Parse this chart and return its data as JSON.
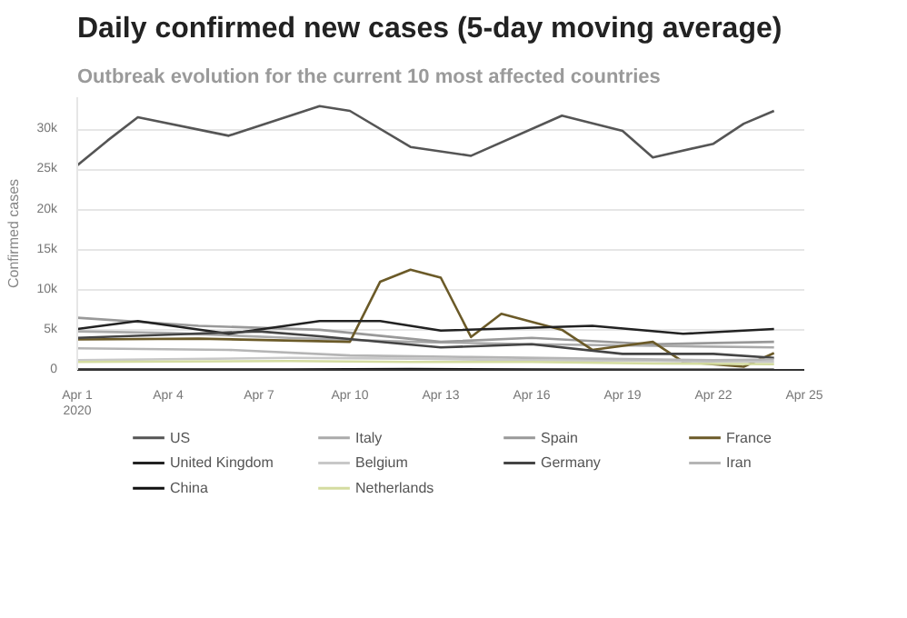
{
  "chart_data": {
    "type": "line",
    "title": "Daily confirmed new cases (5-day moving average)",
    "subtitle": "Outbreak evolution for the current 10 most affected countries",
    "ylabel": "Confirmed cases",
    "x": [
      "2020-04-01",
      "2020-04-02",
      "2020-04-03",
      "2020-04-06",
      "2020-04-09",
      "2020-04-10",
      "2020-04-12",
      "2020-04-14",
      "2020-04-17",
      "2020-04-19",
      "2020-04-20",
      "2020-04-22",
      "2020-04-23",
      "2020-04-24"
    ],
    "xlim": [
      "2020-04-01",
      "2020-04-25"
    ],
    "ylim": [
      0,
      34000
    ],
    "xticks": [
      {
        "value": "2020-04-01",
        "label": "Apr 1\n2020"
      },
      {
        "value": "2020-04-04",
        "label": "Apr 4"
      },
      {
        "value": "2020-04-07",
        "label": "Apr 7"
      },
      {
        "value": "2020-04-10",
        "label": "Apr 10"
      },
      {
        "value": "2020-04-13",
        "label": "Apr 13"
      },
      {
        "value": "2020-04-16",
        "label": "Apr 16"
      },
      {
        "value": "2020-04-19",
        "label": "Apr 19"
      },
      {
        "value": "2020-04-22",
        "label": "Apr 22"
      },
      {
        "value": "2020-04-25",
        "label": "Apr 25"
      }
    ],
    "yticks": [
      {
        "value": 0,
        "label": "0"
      },
      {
        "value": 5000,
        "label": "5k"
      },
      {
        "value": 10000,
        "label": "10k"
      },
      {
        "value": 15000,
        "label": "15k"
      },
      {
        "value": 20000,
        "label": "20k"
      },
      {
        "value": 25000,
        "label": "25k"
      },
      {
        "value": 30000,
        "label": "30k"
      }
    ],
    "grid": "y",
    "legend": "bottom",
    "marker": "none",
    "line_style": "solid",
    "series": [
      {
        "name": "US",
        "color": "#555555",
        "values": [
          25500,
          28600,
          31500,
          29200,
          32900,
          32300,
          27800,
          26700,
          31700,
          29800,
          26500,
          28200,
          30700,
          32300
        ]
      },
      {
        "name": "Italy",
        "color": "#aaaaaa",
        "x": [
          "2020-04-01",
          "2020-04-04",
          "2020-04-08",
          "2020-04-12",
          "2020-04-16",
          "2020-04-20",
          "2020-04-24"
        ],
        "values": [
          4800,
          4600,
          4000,
          3500,
          3200,
          3000,
          2800
        ]
      },
      {
        "name": "Spain",
        "color": "#999999",
        "x": [
          "2020-04-01",
          "2020-04-05",
          "2020-04-09",
          "2020-04-13",
          "2020-04-16",
          "2020-04-20",
          "2020-04-24"
        ],
        "values": [
          6500,
          5500,
          5000,
          3500,
          4000,
          3200,
          3500
        ]
      },
      {
        "name": "France",
        "color": "#6b5a28",
        "x": [
          "2020-04-01",
          "2020-04-05",
          "2020-04-10",
          "2020-04-11",
          "2020-04-12",
          "2020-04-13",
          "2020-04-14",
          "2020-04-15",
          "2020-04-17",
          "2020-04-18",
          "2020-04-20",
          "2020-04-21",
          "2020-04-23",
          "2020-04-24"
        ],
        "values": [
          3800,
          3900,
          3500,
          11000,
          12500,
          11500,
          4100,
          7000,
          5000,
          2500,
          3500,
          1000,
          400,
          2100
        ]
      },
      {
        "name": "United Kingdom",
        "color": "#222222",
        "x": [
          "2020-04-01",
          "2020-04-03",
          "2020-04-06",
          "2020-04-09",
          "2020-04-11",
          "2020-04-13",
          "2020-04-18",
          "2020-04-21",
          "2020-04-24"
        ],
        "values": [
          5100,
          6100,
          4500,
          6100,
          6100,
          4900,
          5500,
          4500,
          5100
        ]
      },
      {
        "name": "Belgium",
        "color": "#c8c8c8",
        "x": [
          "2020-04-01",
          "2020-04-08",
          "2020-04-12",
          "2020-04-16",
          "2020-04-20",
          "2020-04-24"
        ],
        "values": [
          1200,
          1500,
          1400,
          1200,
          1100,
          1000
        ]
      },
      {
        "name": "Germany",
        "color": "#444444",
        "x": [
          "2020-04-01",
          "2020-04-04",
          "2020-04-07",
          "2020-04-09",
          "2020-04-13",
          "2020-04-16",
          "2020-04-19",
          "2020-04-22",
          "2020-04-24"
        ],
        "values": [
          4000,
          4400,
          4800,
          4200,
          2800,
          3200,
          2000,
          2000,
          1500
        ]
      },
      {
        "name": "Iran",
        "color": "#b5b5b5",
        "x": [
          "2020-04-01",
          "2020-04-06",
          "2020-04-10",
          "2020-04-14",
          "2020-04-18",
          "2020-04-22",
          "2020-04-24"
        ],
        "values": [
          2700,
          2500,
          1800,
          1600,
          1400,
          1200,
          1300
        ]
      },
      {
        "name": "China",
        "color": "#111111",
        "x": [
          "2020-04-01",
          "2020-04-08",
          "2020-04-12",
          "2020-04-16",
          "2020-04-20",
          "2020-04-24"
        ],
        "values": [
          50,
          60,
          100,
          40,
          20,
          20
        ]
      },
      {
        "name": "Netherlands",
        "color": "#d4dca0",
        "x": [
          "2020-04-01",
          "2020-04-08",
          "2020-04-12",
          "2020-04-16",
          "2020-04-20",
          "2020-04-24"
        ],
        "values": [
          1000,
          1100,
          1000,
          1000,
          800,
          700
        ]
      }
    ]
  }
}
